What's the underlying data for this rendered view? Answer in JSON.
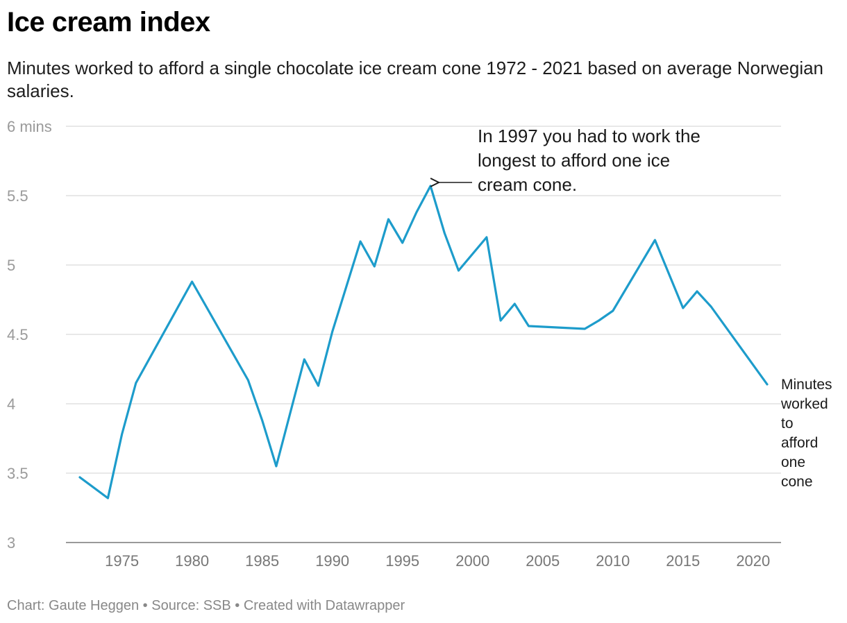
{
  "header": {
    "title": "Ice cream index",
    "subtitle": "Minutes worked to afford a single chocolate ice cream cone 1972 - 2021 based on average Norwegian salaries."
  },
  "footer": {
    "credit": "Chart: Gaute Heggen • Source: SSB • Created with Datawrapper"
  },
  "colors": {
    "line": "#1d9ccb",
    "grid": "#e0e0e0"
  },
  "chart_data": {
    "type": "line",
    "title": "Ice cream index",
    "xlabel": "",
    "ylabel": "",
    "xlim": [
      1972,
      2021
    ],
    "ylim": [
      3,
      6
    ],
    "y_ticks": [
      {
        "value": 6,
        "label": "6 mins"
      },
      {
        "value": 5.5,
        "label": "5.5"
      },
      {
        "value": 5,
        "label": "5"
      },
      {
        "value": 4.5,
        "label": "4.5"
      },
      {
        "value": 4,
        "label": "4"
      },
      {
        "value": 3.5,
        "label": "3.5"
      },
      {
        "value": 3,
        "label": "3"
      }
    ],
    "x_ticks": [
      {
        "value": 1975,
        "label": "1975"
      },
      {
        "value": 1980,
        "label": "1980"
      },
      {
        "value": 1985,
        "label": "1985"
      },
      {
        "value": 1990,
        "label": "1990"
      },
      {
        "value": 1995,
        "label": "1995"
      },
      {
        "value": 2000,
        "label": "2000"
      },
      {
        "value": 2005,
        "label": "2005"
      },
      {
        "value": 2010,
        "label": "2010"
      },
      {
        "value": 2015,
        "label": "2015"
      },
      {
        "value": 2020,
        "label": "2020"
      }
    ],
    "series": [
      {
        "name": "Minutes worked to afford one cone",
        "label_lines": [
          "Minutes",
          "worked",
          "to",
          "afford",
          "one",
          "cone"
        ],
        "x": [
          1972,
          1974,
          1975,
          1976,
          1980,
          1984,
          1985,
          1986,
          1988,
          1989,
          1990,
          1992,
          1993,
          1994,
          1995,
          1996,
          1997,
          1998,
          1999,
          2001,
          2002,
          2003,
          2004,
          2008,
          2009,
          2010,
          2013,
          2015,
          2016,
          2017,
          2021
        ],
        "values": [
          3.47,
          3.32,
          3.78,
          4.15,
          4.88,
          4.17,
          3.88,
          3.55,
          4.32,
          4.13,
          4.52,
          5.17,
          4.99,
          5.33,
          5.16,
          5.38,
          5.57,
          5.23,
          4.96,
          5.2,
          4.6,
          4.72,
          4.56,
          4.54,
          4.6,
          4.67,
          5.18,
          4.69,
          4.81,
          4.7,
          4.14
        ]
      }
    ],
    "annotations": [
      {
        "text_lines": [
          "In 1997 you had to work the",
          "longest to afford one ice",
          "cream cone."
        ],
        "x": 1997,
        "y": 5.57
      }
    ]
  }
}
